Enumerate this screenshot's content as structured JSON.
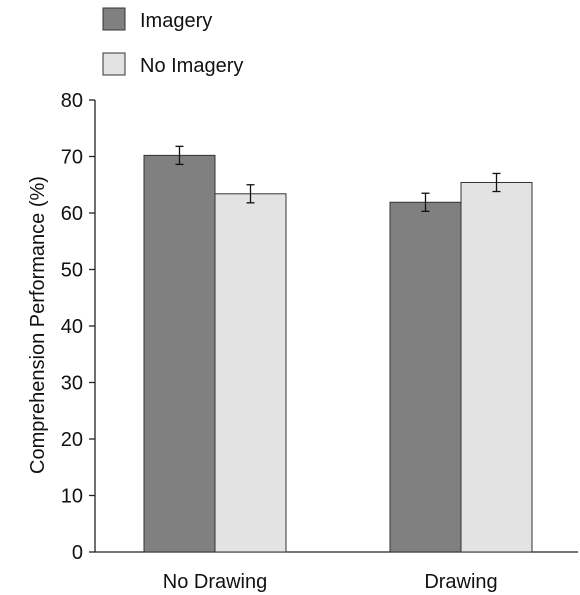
{
  "chart_data": {
    "type": "bar",
    "categories": [
      "No Drawing",
      "Drawing"
    ],
    "series": [
      {
        "name": "Imagery",
        "values": [
          70.2,
          61.9
        ],
        "errors": [
          1.6,
          1.6
        ],
        "color": "#808080"
      },
      {
        "name": "No Imagery",
        "values": [
          63.4,
          65.4
        ],
        "errors": [
          1.6,
          1.6
        ],
        "color": "#e3e3e3"
      }
    ],
    "ylabel": "Comprehension Performance (%)",
    "xlabel": "",
    "ylim": [
      0,
      80
    ],
    "yticks": [
      "0",
      "10",
      "20",
      "30",
      "40",
      "50",
      "60",
      "70",
      "80"
    ],
    "grid": false,
    "legend_position": "top-left"
  }
}
